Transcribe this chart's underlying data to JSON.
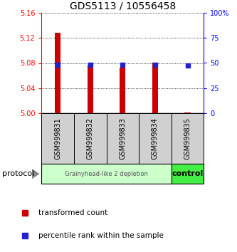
{
  "title": "GDS5113 / 10556458",
  "samples": [
    "GSM999831",
    "GSM999832",
    "GSM999833",
    "GSM999834",
    "GSM999835"
  ],
  "red_values": [
    5.128,
    5.077,
    5.073,
    5.08,
    5.002
  ],
  "blue_values": [
    5.077,
    5.077,
    5.077,
    5.077,
    5.076
  ],
  "y_min": 5.0,
  "y_max": 5.16,
  "y_ticks": [
    5.0,
    5.04,
    5.08,
    5.12,
    5.16
  ],
  "y_right_ticks": [
    0,
    25,
    50,
    75,
    100
  ],
  "y_right_labels": [
    "0",
    "25",
    "50",
    "75",
    "100%"
  ],
  "bar_color": "#cc0000",
  "blue_color": "#2222cc",
  "group1_label": "Grainyhead-like 2 depletion",
  "group2_label": "control",
  "group1_color": "#ccffcc",
  "group2_color": "#44ee44",
  "protocol_label": "protocol",
  "legend_red_label": "transformed count",
  "legend_blue_label": "percentile rank within the sample",
  "bar_width": 0.18
}
